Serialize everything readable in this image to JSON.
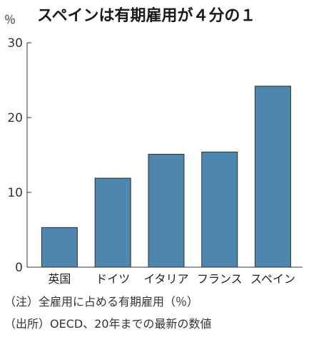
{
  "chart_data": {
    "type": "bar",
    "title": "スペインは有期雇用が４分の１",
    "unit_label": "％",
    "categories": [
      "英国",
      "ドイツ",
      "イタリア",
      "フランス",
      "スペイン"
    ],
    "values": [
      5.3,
      11.9,
      15.1,
      15.4,
      24.2
    ],
    "ylim": [
      0,
      30
    ],
    "yticks": [
      0,
      10,
      20,
      30
    ],
    "bar_color": "#4e87ad",
    "grid": false,
    "notes": [
      "（注）全雇用に占める有期雇用（％）",
      "（出所）OECD、20年までの最新の数値"
    ]
  }
}
